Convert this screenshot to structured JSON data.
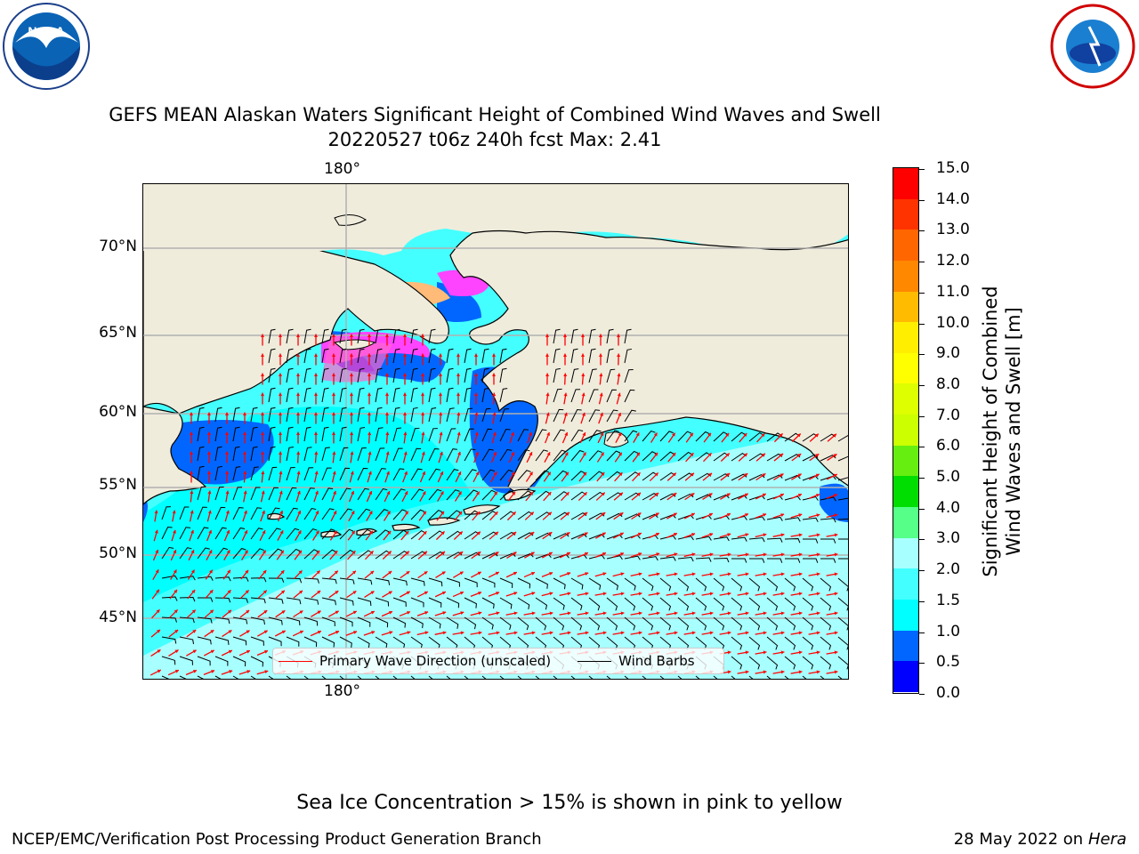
{
  "title": {
    "line1": "GEFS MEAN Alaskan Waters Significant Height of Combined Wind Waves and Swell",
    "line2": "20220527 t06z 240h fcst   Max: 2.41"
  },
  "logos": {
    "left": {
      "name": "noaa-logo",
      "text": "NOAA"
    },
    "right": {
      "name": "nws-logo",
      "text": "NATIONAL WEATHER SERVICE"
    }
  },
  "map": {
    "lon_label_top": "180°",
    "lon_label_bottom": "180°",
    "lat_labels": [
      "70°N",
      "65°N",
      "60°N",
      "55°N",
      "50°N",
      "45°N"
    ],
    "land_color": "#efecdc",
    "legend": {
      "wave_label": "Primary Wave Direction (unscaled)",
      "wind_label": "Wind Barbs",
      "wave_color": "#ff0000",
      "wind_color": "#000000"
    }
  },
  "colorbar": {
    "label": "Significant Height of Combined Wind Waves and Swell [m]",
    "label_line1": "Significant Height of Combined",
    "label_line2": "Wind Waves and Swell [m]",
    "ticks": [
      "15.0",
      "14.0",
      "13.0",
      "12.0",
      "11.0",
      "10.0",
      "9.0",
      "8.0",
      "7.0",
      "6.0",
      "5.0",
      "4.0",
      "3.0",
      "2.0",
      "1.5",
      "1.0",
      "0.5",
      "0.0"
    ],
    "colors_bottom_to_top": [
      "#0000ff",
      "#0066ff",
      "#00ffff",
      "#44ffff",
      "#a8ffff",
      "#55ff88",
      "#00dd00",
      "#66ee11",
      "#ccff00",
      "#ddff00",
      "#ffff00",
      "#ffee00",
      "#ffbb00",
      "#ff8800",
      "#ff6600",
      "#ff3300",
      "#ff0000"
    ]
  },
  "note": "Sea Ice Concentration > 15% is shown in pink to yellow",
  "footer": {
    "left": "NCEP/EMC/Verification Post Processing Product Generation Branch",
    "right_date": "28 May 2022 on",
    "right_host": "Hera"
  }
}
